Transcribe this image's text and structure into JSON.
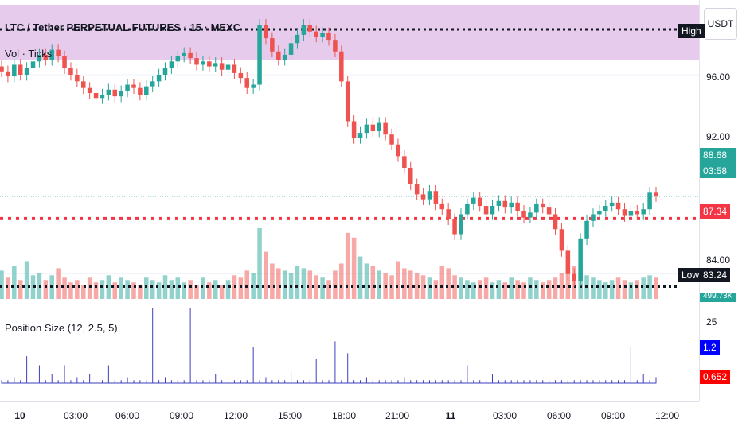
{
  "chart": {
    "symbol_title": "LTC / Tether PERPETUAL FUTURES · 15 · MEXC",
    "volume_title": "Vol · Ticks",
    "indicator_title": "Position Size (12, 2.5, 5)",
    "currency": "USDT"
  },
  "price_axis": {
    "ticks": [
      "96.00",
      "92.00",
      "84.00"
    ],
    "high_label": "High",
    "high_value": "",
    "current_price": "88.68",
    "countdown": "03:58",
    "stop_price": "87.34",
    "low_label": "Low",
    "low_value": "83.24",
    "volume_value": "499.73K"
  },
  "indicator_axis": {
    "max_tick": "25",
    "blue_value": "1.2",
    "red_value": "0.652"
  },
  "time_axis": {
    "labels": [
      "10",
      "03:00",
      "06:00",
      "09:00",
      "12:00",
      "15:00",
      "18:00",
      "21:00",
      "11",
      "03:00",
      "06:00",
      "09:00",
      "12:00"
    ]
  },
  "colors": {
    "up": "#26a69a",
    "down": "#ef5350",
    "high_band": "#e1bee7",
    "current_price_tag": "#26a69a",
    "stop_tag": "#f23645",
    "indicator_line": "#3f3fbf",
    "blue_tag": "#0000ff",
    "red_tag": "#ff0000"
  },
  "chart_data": {
    "type": "candlestick",
    "close": [
      96.2,
      95.9,
      96.6,
      96.0,
      96.4,
      96.8,
      97.2,
      96.9,
      97.5,
      97.1,
      96.4,
      96.0,
      95.6,
      95.2,
      94.9,
      94.6,
      94.8,
      95.1,
      94.7,
      95.0,
      95.4,
      95.2,
      94.8,
      95.3,
      95.6,
      96.0,
      96.4,
      96.8,
      97.1,
      97.3,
      97.0,
      96.6,
      96.8,
      96.5,
      96.7,
      96.3,
      96.6,
      96.1,
      95.8,
      95.2,
      95.4,
      99.0,
      98.2,
      97.4,
      96.9,
      97.2,
      97.9,
      98.4,
      99.0,
      98.6,
      98.3,
      98.5,
      98.1,
      97.4,
      95.6,
      93.2,
      92.2,
      92.5,
      93.0,
      92.6,
      93.1,
      92.4,
      91.8,
      91.1,
      90.4,
      89.4,
      88.8,
      88.5,
      89.0,
      88.2,
      87.9,
      87.3,
      86.4,
      87.6,
      88.2,
      88.6,
      88.1,
      87.6,
      88.1,
      88.4,
      88.0,
      88.3,
      87.8,
      87.4,
      87.7,
      88.2,
      88.0,
      87.6,
      86.7,
      85.4,
      84.0,
      83.6,
      86.1,
      87.2,
      87.6,
      87.8,
      88.1,
      88.3,
      87.9,
      87.5,
      87.8,
      87.6,
      87.9,
      88.9,
      88.7
    ],
    "volume": [
      12,
      9,
      14,
      8,
      16,
      10,
      11,
      8,
      10,
      13,
      9,
      7,
      8,
      6,
      9,
      7,
      8,
      10,
      7,
      9,
      8,
      7,
      6,
      9,
      8,
      7,
      10,
      8,
      9,
      7,
      8,
      6,
      9,
      7,
      8,
      6,
      8,
      10,
      9,
      12,
      11,
      30,
      20,
      15,
      13,
      12,
      11,
      14,
      13,
      12,
      10,
      9,
      8,
      12,
      15,
      28,
      26,
      18,
      15,
      14,
      12,
      11,
      10,
      16,
      13,
      12,
      11,
      10,
      9,
      8,
      14,
      13,
      10,
      9,
      8,
      7,
      8,
      9,
      7,
      8,
      7,
      9,
      8,
      7,
      9,
      8,
      7,
      8,
      9,
      11,
      13,
      14,
      12,
      10,
      9,
      8,
      7,
      8,
      9,
      8,
      7,
      8,
      9,
      10,
      9
    ],
    "position_size": [
      1,
      1,
      2,
      1,
      9,
      1,
      6,
      1,
      3,
      1,
      6,
      1,
      2,
      1,
      3,
      1,
      1,
      6,
      1,
      1,
      2,
      1,
      1,
      1,
      25,
      1,
      2,
      1,
      1,
      1,
      25,
      1,
      1,
      1,
      3,
      1,
      1,
      1,
      1,
      1,
      12,
      1,
      2,
      1,
      1,
      1,
      4,
      1,
      1,
      1,
      8,
      1,
      1,
      14,
      1,
      10,
      1,
      1,
      2,
      1,
      1,
      1,
      1,
      1,
      2,
      1,
      1,
      1,
      1,
      1,
      1,
      1,
      1,
      1,
      6,
      1,
      1,
      1,
      3,
      1,
      1,
      1,
      1,
      1,
      1,
      1,
      1,
      1,
      1,
      1,
      1,
      1,
      1,
      1,
      1,
      1,
      1,
      1,
      1,
      1,
      12,
      1,
      3,
      1,
      2
    ],
    "ylim": [
      82.5,
      100.5
    ],
    "indicator_ylim": [
      0,
      25
    ]
  }
}
